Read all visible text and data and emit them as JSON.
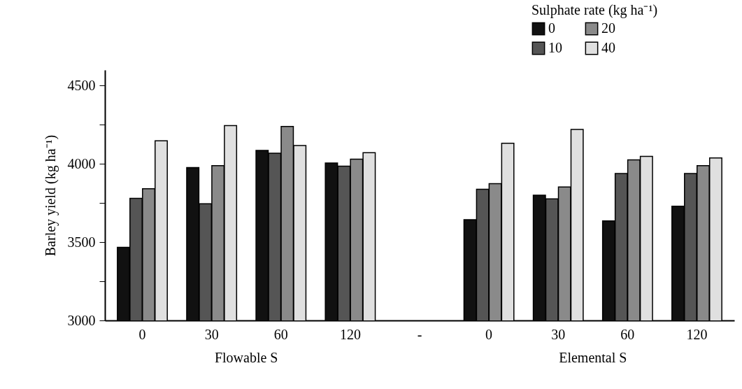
{
  "chart_data": {
    "type": "bar",
    "ylabel": "Barley yield (kg ha⁻¹)",
    "legend_title": "Sulphate rate (kg ha⁻¹)",
    "categories": [
      "0",
      "30",
      "60",
      "120",
      "-",
      "0",
      "30",
      "60",
      "120"
    ],
    "series": [
      {
        "name": "0",
        "color": "#111111",
        "values": [
          3467,
          3977,
          4086,
          4006,
          null,
          3644,
          3800,
          3636,
          3730
        ]
      },
      {
        "name": "10",
        "color": "#555555",
        "values": [
          3780,
          3745,
          4068,
          3985,
          null,
          3838,
          3777,
          3939,
          3939
        ]
      },
      {
        "name": "20",
        "color": "#8a8a8a",
        "values": [
          3841,
          3989,
          4239,
          4030,
          null,
          3874,
          3853,
          4026,
          3989
        ]
      },
      {
        "name": "40",
        "color": "#e0e0e0",
        "values": [
          4147,
          4245,
          4117,
          4071,
          null,
          4132,
          4220,
          4048,
          4038
        ]
      }
    ],
    "ylim": [
      3000,
      4600
    ],
    "yticks": [
      3000,
      {
        "value": 3250,
        "label": null
      },
      3500,
      {
        "value": 3750,
        "label": null
      },
      4000,
      {
        "value": 4250,
        "label": null
      },
      4500
    ],
    "annotations": [
      "Flowable S",
      "Elemental S"
    ],
    "grid": false,
    "legend": "top right"
  }
}
